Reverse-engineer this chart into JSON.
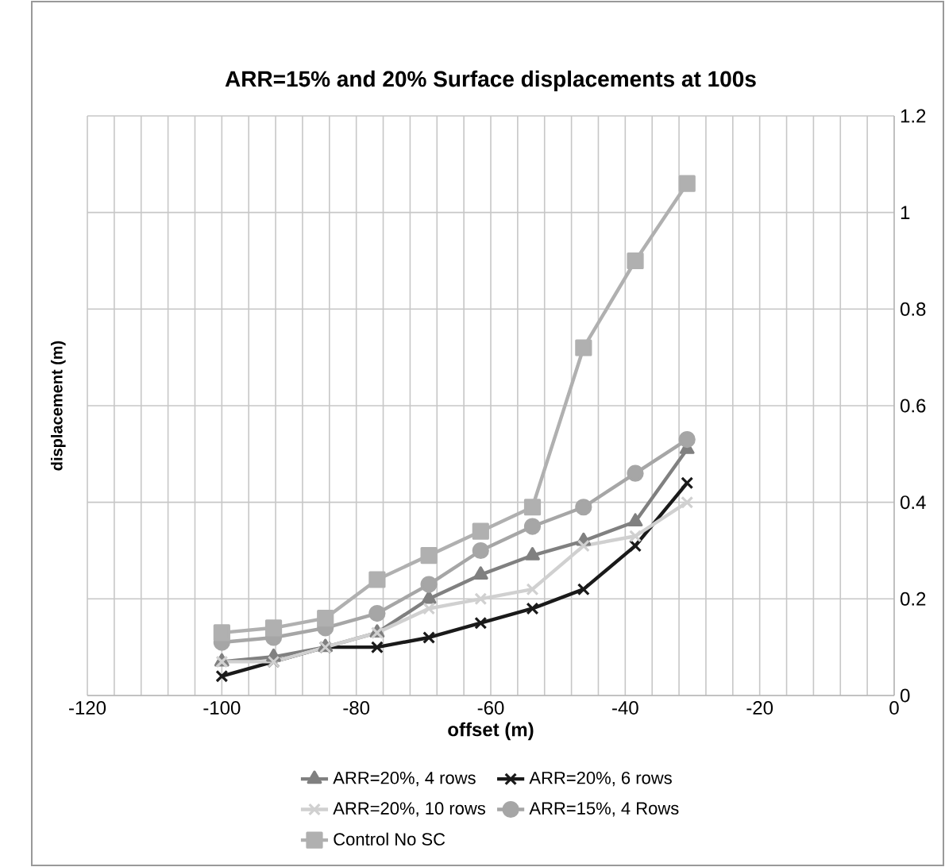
{
  "chart_data": {
    "type": "line",
    "title": "ARR=15% and 20% Surface displacements at 100s",
    "xlabel": "offset (m)",
    "ylabel": "displacement (m)",
    "x": [
      -100,
      -92.3,
      -84.6,
      -76.9,
      -69.2,
      -61.5,
      -53.8,
      -46.2,
      -38.5,
      -30.8
    ],
    "series": [
      {
        "name": "ARR=20%, 4 rows",
        "color": "#808080",
        "marker": "triangle",
        "values": [
          0.07,
          0.08,
          0.1,
          0.13,
          0.2,
          0.25,
          0.29,
          0.32,
          0.36,
          0.51
        ]
      },
      {
        "name": "ARR=20%, 6 rows",
        "color": "#1a1a1a",
        "marker": "cross",
        "values": [
          0.04,
          0.07,
          0.1,
          0.1,
          0.12,
          0.15,
          0.18,
          0.22,
          0.31,
          0.44
        ]
      },
      {
        "name": "ARR=20%, 10 rows",
        "color": "#d0d0d0",
        "marker": "cross",
        "values": [
          0.07,
          0.07,
          0.1,
          0.13,
          0.18,
          0.2,
          0.22,
          0.31,
          0.33,
          0.4
        ]
      },
      {
        "name": "ARR=15%, 4 Rows",
        "color": "#a6a6a6",
        "marker": "circle",
        "values": [
          0.11,
          0.12,
          0.14,
          0.17,
          0.23,
          0.3,
          0.35,
          0.39,
          0.46,
          0.53
        ]
      },
      {
        "name": "Control No SC",
        "color": "#b0b0b0",
        "marker": "square",
        "values": [
          0.13,
          0.14,
          0.16,
          0.24,
          0.29,
          0.34,
          0.39,
          0.72,
          0.9,
          1.06
        ]
      }
    ],
    "xlim": [
      -120,
      0
    ],
    "xticks": [
      -120,
      -100,
      -80,
      -60,
      -40,
      -20,
      0
    ],
    "ylim": [
      0,
      1.2
    ],
    "yticks": [
      0,
      {
        "value": 0.2,
        "label": "0.2"
      },
      {
        "value": 0.4,
        "label": "0.4"
      },
      {
        "value": 0.6,
        "label": "0.6"
      },
      {
        "value": 0.8,
        "label": "0.8"
      },
      1,
      {
        "value": 1.2,
        "label": "1.2"
      }
    ],
    "grid": true,
    "legend": "bottom",
    "line_style": "solid"
  }
}
